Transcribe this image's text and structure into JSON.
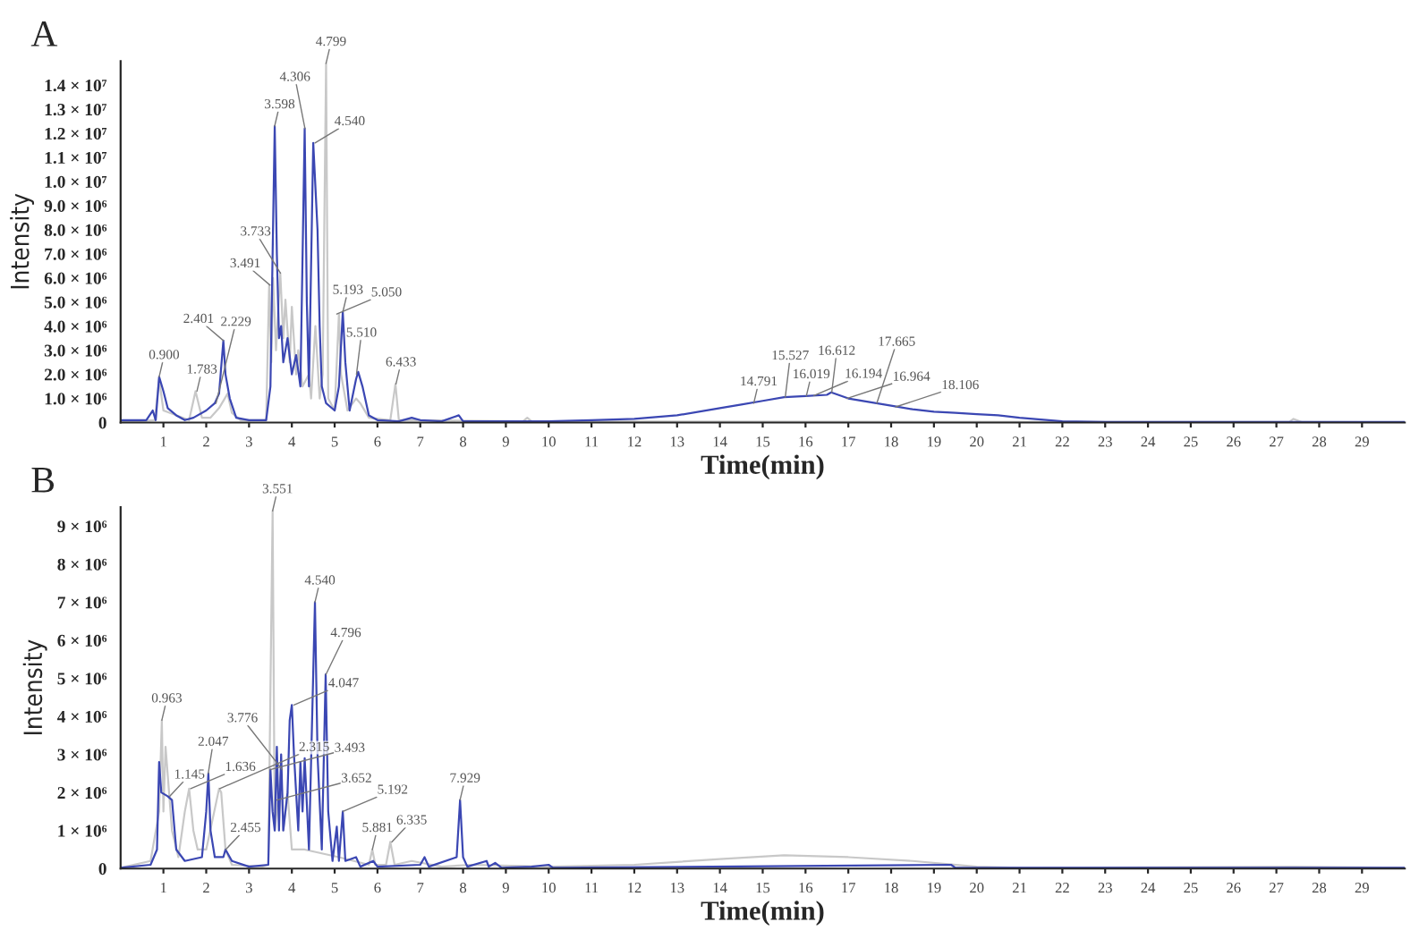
{
  "chart_data": [
    {
      "type": "line",
      "title": "A",
      "xlabel": "Time(min)",
      "ylabel": "Intensity",
      "xlim": [
        0,
        30
      ],
      "ylim": [
        0,
        15000000.0
      ],
      "xticks": [
        1,
        2,
        3,
        4,
        5,
        6,
        7,
        8,
        9,
        10,
        11,
        12,
        13,
        14,
        15,
        16,
        17,
        18,
        19,
        20,
        21,
        22,
        23,
        24,
        25,
        26,
        27,
        28,
        29
      ],
      "yticks": [
        0,
        {
          "value": 1000000.0,
          "label": "1.0 × 10⁶"
        },
        {
          "value": 2000000.0,
          "label": "2.0 × 10⁶"
        },
        {
          "value": 3000000.0,
          "label": "3.0 × 10⁶"
        },
        {
          "value": 4000000.0,
          "label": "4.0 × 10⁶"
        },
        {
          "value": 5000000.0,
          "label": "5.0 × 10⁶"
        },
        {
          "value": 6000000.0,
          "label": "6.0 × 10⁶"
        },
        {
          "value": 7000000.0,
          "label": "7.0 × 10⁶"
        },
        {
          "value": 8000000.0,
          "label": "8.0 × 10⁶"
        },
        {
          "value": 9000000.0,
          "label": "9.0 × 10⁶"
        },
        {
          "value": 10000000.0,
          "label": "1.0 × 10⁷"
        },
        {
          "value": 11000000.0,
          "label": "1.1 × 10⁷"
        },
        {
          "value": 12000000.0,
          "label": "1.2 × 10⁷"
        },
        {
          "value": 13000000.0,
          "label": "1.3 × 10⁷"
        },
        {
          "value": 14000000.0,
          "label": "1.4 × 10⁷"
        }
      ],
      "grid": false,
      "legend": false,
      "series": [
        {
          "color": "#c8c8c8",
          "x": [
            0,
            0.8,
            0.9,
            1.0,
            1.6,
            1.75,
            1.9,
            2.1,
            2.3,
            2.5,
            2.6,
            2.8,
            3.4,
            3.47,
            3.52,
            3.56,
            3.63,
            3.73,
            3.8,
            3.85,
            3.95,
            4.0,
            4.1,
            4.15,
            4.25,
            4.4,
            4.45,
            4.55,
            4.65,
            4.72,
            4.8,
            4.85,
            5.0,
            5.1,
            5.15,
            5.3,
            5.5,
            5.6,
            5.8,
            6.3,
            6.42,
            6.5,
            7.0,
            9.4,
            9.5,
            9.6,
            10,
            27.3,
            27.4,
            27.6,
            30
          ],
          "values": [
            10000.0,
            100000.0,
            1800000.0,
            500000.0,
            100000.0,
            1300000.0,
            200000.0,
            200000.0,
            600000.0,
            1200000.0,
            400000.0,
            100000.0,
            100000.0,
            5700000.0,
            2500000.0,
            6000000.0,
            3000000.0,
            6200000.0,
            3500000.0,
            5100000.0,
            2500000.0,
            4800000.0,
            2000000.0,
            3000000.0,
            1500000.0,
            2000000.0,
            1000000.0,
            4000000.0,
            1000000.0,
            2000000.0,
            14900000.0,
            1000000.0,
            500000.0,
            4500000.0,
            2000000.0,
            500000.0,
            1000000.0,
            800000.0,
            200000.0,
            100000.0,
            1600000.0,
            100000.0,
            100000.0,
            50000.0,
            200000.0,
            50000.0,
            50000.0,
            20000.0,
            150000.0,
            20000.0,
            10000.0
          ]
        },
        {
          "color": "#3b47b3",
          "x": [
            0,
            0.6,
            0.75,
            0.82,
            0.9,
            1.0,
            1.1,
            1.3,
            1.5,
            1.7,
            2.0,
            2.2,
            2.3,
            2.4,
            2.45,
            2.55,
            2.7,
            3.0,
            3.4,
            3.5,
            3.6,
            3.65,
            3.7,
            3.75,
            3.8,
            3.9,
            4.0,
            4.1,
            4.2,
            4.3,
            4.35,
            4.4,
            4.5,
            4.6,
            4.65,
            4.7,
            4.8,
            5.0,
            5.1,
            5.19,
            5.25,
            5.35,
            5.5,
            5.55,
            5.65,
            5.8,
            6.0,
            6.5,
            6.8,
            7.0,
            7.5,
            7.9,
            8.0,
            9.0,
            10,
            11,
            12,
            13,
            14,
            14.5,
            15,
            15.5,
            16,
            16.5,
            16.6,
            17,
            17.5,
            18,
            18.5,
            19,
            19.5,
            20,
            20.5,
            21,
            22,
            23,
            27,
            30
          ],
          "values": [
            100000.0,
            100000.0,
            500000.0,
            100000.0,
            1900000.0,
            1300000.0,
            600000.0,
            300000.0,
            100000.0,
            200000.0,
            500000.0,
            800000.0,
            1200000.0,
            3400000.0,
            2000000.0,
            1000000.0,
            200000.0,
            100000.0,
            100000.0,
            1500000.0,
            12300000.0,
            7000000.0,
            3500000.0,
            4000000.0,
            2500000.0,
            3500000.0,
            2000000.0,
            2800000.0,
            1500000.0,
            12200000.0,
            5000000.0,
            1500000.0,
            11600000.0,
            8000000.0,
            4000000.0,
            1500000.0,
            800000.0,
            500000.0,
            1500000.0,
            4600000.0,
            2500000.0,
            500000.0,
            1800000.0,
            2100000.0,
            1500000.0,
            300000.0,
            100000.0,
            50000.0,
            200000.0,
            100000.0,
            50000.0,
            300000.0,
            50000.0,
            50000.0,
            50000.0,
            100000.0,
            150000.0,
            300000.0,
            600000.0,
            750000.0,
            900000.0,
            1050000.0,
            1100000.0,
            1150000.0,
            1250000.0,
            1000000.0,
            850000.0,
            700000.0,
            550000.0,
            450000.0,
            400000.0,
            350000.0,
            300000.0,
            200000.0,
            50000.0,
            20000.0,
            20000.0,
            20000.0
          ]
        }
      ],
      "annotations": [
        {
          "text": "0.900",
          "x": 0.9,
          "y": 1900000.0
        },
        {
          "text": "1.783",
          "x": 1.783,
          "y": 1300000.0
        },
        {
          "text": "2.229",
          "x": 2.229,
          "y": 800000.0
        },
        {
          "text": "2.401",
          "x": 2.401,
          "y": 3400000.0
        },
        {
          "text": "3.491",
          "x": 3.491,
          "y": 5700000.0
        },
        {
          "text": "3.733",
          "x": 3.733,
          "y": 6200000.0
        },
        {
          "text": "3.598",
          "x": 3.598,
          "y": 12300000.0
        },
        {
          "text": "4.306",
          "x": 4.306,
          "y": 12200000.0
        },
        {
          "text": "4.540",
          "x": 4.54,
          "y": 11600000.0
        },
        {
          "text": "4.799",
          "x": 4.799,
          "y": 14900000.0
        },
        {
          "text": "5.193",
          "x": 5.193,
          "y": 4600000.0
        },
        {
          "text": "5.050",
          "x": 5.05,
          "y": 4500000.0
        },
        {
          "text": "5.510",
          "x": 5.51,
          "y": 2000000.0
        },
        {
          "text": "6.433",
          "x": 6.433,
          "y": 1600000.0
        },
        {
          "text": "14.791",
          "x": 14.791,
          "y": 800000.0
        },
        {
          "text": "15.527",
          "x": 15.527,
          "y": 1050000.0
        },
        {
          "text": "16.019",
          "x": 16.019,
          "y": 1100000.0
        },
        {
          "text": "16.194",
          "x": 16.194,
          "y": 1120000.0
        },
        {
          "text": "16.612",
          "x": 16.612,
          "y": 1250000.0
        },
        {
          "text": "16.964",
          "x": 16.964,
          "y": 1000000.0
        },
        {
          "text": "17.665",
          "x": 17.665,
          "y": 800000.0
        },
        {
          "text": "18.106",
          "x": 18.106,
          "y": 650000.0
        }
      ]
    },
    {
      "type": "line",
      "title": "B",
      "xlabel": "Time(min)",
      "ylabel": "Intensity",
      "xlim": [
        0,
        30
      ],
      "ylim": [
        0,
        9500000.0
      ],
      "xticks": [
        1,
        2,
        3,
        4,
        5,
        6,
        7,
        8,
        9,
        10,
        11,
        12,
        13,
        14,
        15,
        16,
        17,
        18,
        19,
        20,
        21,
        22,
        23,
        24,
        25,
        26,
        27,
        28,
        29
      ],
      "yticks": [
        0,
        {
          "value": 1000000.0,
          "label": "1 × 10⁶"
        },
        {
          "value": 2000000.0,
          "label": "2 × 10⁶"
        },
        {
          "value": 3000000.0,
          "label": "3 × 10⁶"
        },
        {
          "value": 4000000.0,
          "label": "4 × 10⁶"
        },
        {
          "value": 5000000.0,
          "label": "5 × 10⁶"
        },
        {
          "value": 6000000.0,
          "label": "6 × 10⁶"
        },
        {
          "value": 7000000.0,
          "label": "7 × 10⁶"
        },
        {
          "value": 8000000.0,
          "label": "8 × 10⁶"
        },
        {
          "value": 9000000.0,
          "label": "9 × 10⁶"
        }
      ],
      "grid": false,
      "legend": false,
      "series": [
        {
          "color": "#c8c8c8",
          "x": [
            0,
            0.7,
            0.9,
            0.963,
            1.0,
            1.05,
            1.2,
            1.35,
            1.5,
            1.6,
            1.7,
            1.8,
            2.0,
            2.3,
            2.35,
            2.45,
            2.6,
            3.3,
            3.45,
            3.551,
            3.6,
            3.75,
            3.8,
            3.9,
            4.0,
            4.3,
            5.1,
            5.8,
            5.88,
            5.95,
            6.2,
            6.3,
            6.4,
            6.8,
            7.5,
            8.2,
            10,
            12,
            14,
            15.5,
            17,
            18.5,
            20,
            21,
            27.4,
            30
          ],
          "values": [
            20000.0,
            200000.0,
            1500000.0,
            3900000.0,
            1500000.0,
            3200000.0,
            1000000.0,
            300000.0,
            1500000.0,
            2100000.0,
            1000000.0,
            500000.0,
            500000.0,
            2100000.0,
            2000000.0,
            500000.0,
            100000.0,
            50000.0,
            100000.0,
            9400000.0,
            1000000.0,
            2600000.0,
            1000000.0,
            2000000.0,
            500000.0,
            500000.0,
            300000.0,
            100000.0,
            500000.0,
            100000.0,
            100000.0,
            700000.0,
            100000.0,
            200000.0,
            50000.0,
            100000.0,
            50000.0,
            100000.0,
            250000.0,
            350000.0,
            300000.0,
            200000.0,
            50000.0,
            20000.0,
            50000.0,
            20000.0
          ]
        },
        {
          "color": "#3b47b3",
          "x": [
            0,
            0.7,
            0.85,
            0.9,
            0.95,
            1.1,
            1.2,
            1.3,
            1.5,
            1.9,
            2.0,
            2.05,
            2.1,
            2.2,
            2.4,
            2.45,
            2.6,
            3.0,
            3.45,
            3.5,
            3.55,
            3.6,
            3.65,
            3.7,
            3.75,
            3.8,
            3.9,
            3.95,
            4.0,
            4.05,
            4.15,
            4.2,
            4.25,
            4.3,
            4.4,
            4.54,
            4.6,
            4.7,
            4.79,
            4.85,
            4.95,
            5.05,
            5.1,
            5.19,
            5.25,
            5.5,
            5.6,
            5.9,
            6.0,
            7.0,
            7.1,
            7.2,
            7.85,
            7.93,
            8.0,
            8.1,
            8.55,
            8.6,
            8.75,
            8.9,
            9.6,
            10.0,
            10.1,
            19.4,
            19.5,
            21.5,
            30
          ],
          "values": [
            20000.0,
            100000.0,
            500000.0,
            2800000.0,
            2000000.0,
            1900000.0,
            1800000.0,
            500000.0,
            200000.0,
            300000.0,
            1500000.0,
            2500000.0,
            1000000.0,
            300000.0,
            300000.0,
            500000.0,
            200000.0,
            50000.0,
            100000.0,
            2600000.0,
            1500000.0,
            1000000.0,
            3200000.0,
            1000000.0,
            3000000.0,
            1000000.0,
            2000000.0,
            3900000.0,
            4300000.0,
            3000000.0,
            1000000.0,
            2800000.0,
            1500000.0,
            2900000.0,
            500000.0,
            7000000.0,
            3000000.0,
            500000.0,
            5100000.0,
            1500000.0,
            200000.0,
            1100000.0,
            200000.0,
            1500000.0,
            200000.0,
            300000.0,
            50000.0,
            200000.0,
            50000.0,
            100000.0,
            300000.0,
            50000.0,
            300000.0,
            1800000.0,
            300000.0,
            50000.0,
            200000.0,
            50000.0,
            150000.0,
            20000.0,
            50000.0,
            100000.0,
            20000.0,
            100000.0,
            20000.0,
            20000.0,
            20000.0
          ]
        }
      ],
      "annotations": [
        {
          "text": "0.963",
          "x": 0.963,
          "y": 3900000.0
        },
        {
          "text": "1.145",
          "x": 1.145,
          "y": 1900000.0
        },
        {
          "text": "1.636",
          "x": 1.636,
          "y": 2100000.0
        },
        {
          "text": "2.047",
          "x": 2.047,
          "y": 2500000.0
        },
        {
          "text": "2.315",
          "x": 2.315,
          "y": 2100000.0
        },
        {
          "text": "2.455",
          "x": 2.455,
          "y": 500000.0
        },
        {
          "text": "3.551",
          "x": 3.551,
          "y": 9400000.0
        },
        {
          "text": "3.776",
          "x": 3.776,
          "y": 2600000.0
        },
        {
          "text": "3.493",
          "x": 3.493,
          "y": 2600000.0
        },
        {
          "text": "3.652",
          "x": 3.652,
          "y": 1800000.0
        },
        {
          "text": "4.047",
          "x": 4.047,
          "y": 4300000.0
        },
        {
          "text": "4.540",
          "x": 4.54,
          "y": 7000000.0
        },
        {
          "text": "4.796",
          "x": 4.796,
          "y": 5100000.0
        },
        {
          "text": "5.192",
          "x": 5.192,
          "y": 1500000.0
        },
        {
          "text": "5.881",
          "x": 5.881,
          "y": 500000.0
        },
        {
          "text": "6.335",
          "x": 6.335,
          "y": 700000.0
        },
        {
          "text": "7.929",
          "x": 7.929,
          "y": 1800000.0
        }
      ]
    }
  ]
}
